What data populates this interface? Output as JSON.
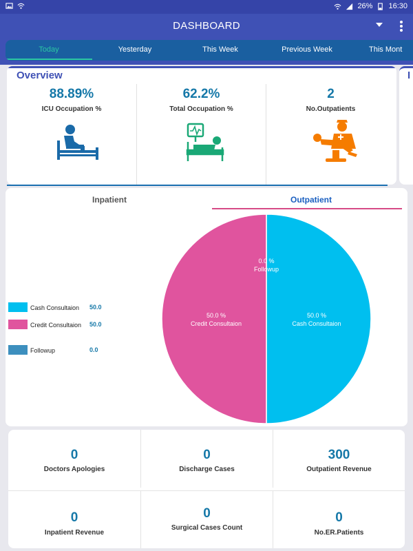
{
  "status_bar": {
    "battery": "26%",
    "time": "16:30"
  },
  "app_bar": {
    "title": "DASHBOARD"
  },
  "tabs": [
    "Today",
    "Yesterday",
    "This Week",
    "Previous Week",
    "This Mont"
  ],
  "active_tab": "Today",
  "overview": {
    "title": "Overview",
    "next_card_title": "I",
    "cards": [
      {
        "value": "88.89%",
        "label": "ICU Occupation %",
        "icon": "patient-bed-icon",
        "color": "#1a6aa8"
      },
      {
        "value": "62.2%",
        "label": "Total Occupation %",
        "icon": "hospital-bed-monitor-icon",
        "color": "#1aa876"
      },
      {
        "value": "2",
        "label": "No.Outpatients",
        "icon": "doctor-patient-chair-icon",
        "color": "#f57c00"
      }
    ]
  },
  "patient_tabs": {
    "inpatient": "Inpatient",
    "outpatient": "Outpatient",
    "active": "Outpatient"
  },
  "legend": [
    {
      "name": "Cash Consultaion",
      "value": "50.0",
      "color": "#00bfef"
    },
    {
      "name": "Credit Consultaion",
      "value": "50.0",
      "color": "#e0549e"
    },
    {
      "name": "Followup",
      "value": "0.0",
      "color": "#3d8fbe"
    }
  ],
  "chart_data": {
    "type": "pie",
    "slices": [
      {
        "label": "Cash Consultaion",
        "percent_text": "50.0 %",
        "value": 50.0,
        "color": "#00bfef"
      },
      {
        "label": "Credit Consultaion",
        "percent_text": "50.0 %",
        "value": 50.0,
        "color": "#e0549e"
      },
      {
        "label": "Followup",
        "percent_text": "0.0 %",
        "value": 0.0,
        "color": "#3d8fbe"
      }
    ]
  },
  "metrics": [
    {
      "value": "0",
      "label": "Doctors Apologies"
    },
    {
      "value": "0",
      "label": "Discharge Cases"
    },
    {
      "value": "300",
      "label": "Outpatient Revenue"
    },
    {
      "value": "0",
      "label": "Inpatient Revenue"
    },
    {
      "value": "0",
      "label": "Surgical Cases Count"
    },
    {
      "value": "0",
      "label": "No.ER.Patients"
    }
  ]
}
